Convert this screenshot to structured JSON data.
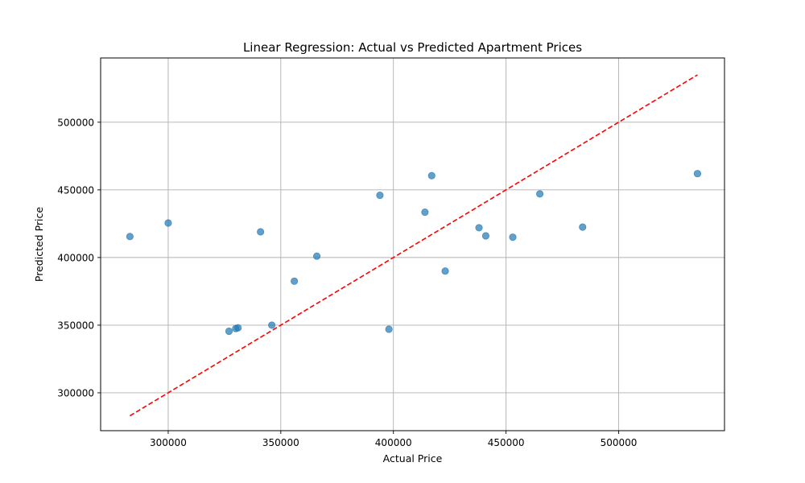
{
  "chart_data": {
    "type": "scatter",
    "title": "Linear Regression: Actual vs Predicted Apartment Prices",
    "xlabel": "Actual Price",
    "ylabel": "Predicted Price",
    "xlim": [
      270000,
      547000
    ],
    "ylim": [
      272000,
      547500
    ],
    "xticks": [
      300000,
      350000,
      400000,
      450000,
      500000
    ],
    "yticks": [
      300000,
      350000,
      400000,
      450000,
      500000
    ],
    "grid": true,
    "series": [
      {
        "kind": "points",
        "color": "#1f77b4",
        "x": [
          283000,
          300000,
          327000,
          330000,
          331000,
          341000,
          346000,
          356000,
          366000,
          394000,
          398000,
          414000,
          417000,
          423000,
          438000,
          441000,
          453000,
          465000,
          484000,
          535000
        ],
        "y": [
          415500,
          425500,
          345500,
          347500,
          348000,
          419000,
          350000,
          382500,
          401000,
          446000,
          347000,
          433500,
          460500,
          390000,
          422000,
          416000,
          415000,
          447000,
          422500,
          462000
        ]
      },
      {
        "kind": "reference-line",
        "color": "#ff0000",
        "dash": "dashed",
        "x": [
          283000,
          535000
        ],
        "y": [
          283000,
          535000
        ]
      }
    ]
  }
}
